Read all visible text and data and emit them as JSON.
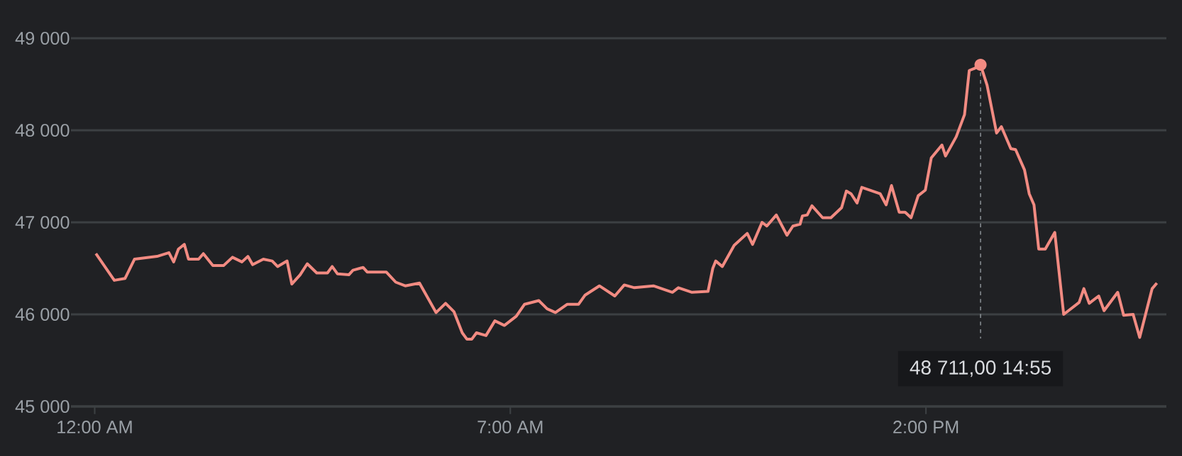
{
  "chart_data": {
    "type": "line",
    "x": [
      0.02,
      0.33,
      0.51,
      0.67,
      1.05,
      1.25,
      1.33,
      1.41,
      1.51,
      1.58,
      1.75,
      1.83,
      1.99,
      2.17,
      2.32,
      2.48,
      2.58,
      2.66,
      2.84,
      2.99,
      3.08,
      3.24,
      3.32,
      3.46,
      3.58,
      3.74,
      3.92,
      4.0,
      4.09,
      4.28,
      4.35,
      4.52,
      4.59,
      4.91,
      5.07,
      5.23,
      5.47,
      5.75,
      5.91,
      6.05,
      6.19,
      6.27,
      6.35,
      6.43,
      6.59,
      6.74,
      6.9,
      7.1,
      7.24,
      7.48,
      7.62,
      7.76,
      7.96,
      8.15,
      8.26,
      8.5,
      8.76,
      8.92,
      9.09,
      9.41,
      9.73,
      9.83,
      10.06,
      10.33,
      10.41,
      10.46,
      10.57,
      10.77,
      10.99,
      11.08,
      11.24,
      11.32,
      11.48,
      11.66,
      11.76,
      11.88,
      11.92,
      12.0,
      12.08,
      12.26,
      12.4,
      12.58,
      12.66,
      12.74,
      12.84,
      12.92,
      13.23,
      13.33,
      13.42,
      13.55,
      13.65,
      13.75,
      13.87,
      13.99,
      14.09,
      14.27,
      14.33,
      14.51,
      14.65,
      14.73,
      14.81,
      14.92,
      15.03,
      15.19,
      15.27,
      15.43,
      15.51,
      15.66,
      15.74,
      15.82,
      15.9,
      16.01,
      16.17,
      16.32,
      16.58,
      16.66,
      16.75,
      16.91,
      17.0,
      17.23,
      17.33,
      17.49,
      17.6,
      17.81,
      17.89
    ],
    "series": [
      {
        "color": "#f28b82",
        "values": [
          46660,
          46370,
          46390,
          46600,
          46630,
          46670,
          46570,
          46710,
          46760,
          46600,
          46600,
          46660,
          46530,
          46530,
          46620,
          46570,
          46630,
          46540,
          46600,
          46580,
          46520,
          46580,
          46330,
          46430,
          46550,
          46450,
          46450,
          46520,
          46440,
          46430,
          46480,
          46510,
          46460,
          46460,
          46350,
          46310,
          46340,
          46020,
          46120,
          46030,
          45800,
          45730,
          45730,
          45800,
          45770,
          45930,
          45880,
          45980,
          46110,
          46150,
          46060,
          46020,
          46110,
          46110,
          46210,
          46310,
          46200,
          46320,
          46290,
          46310,
          46240,
          46290,
          46240,
          46250,
          46500,
          46580,
          46520,
          46750,
          46880,
          46760,
          47000,
          46960,
          47080,
          46860,
          46960,
          46980,
          47070,
          47080,
          47180,
          47050,
          47050,
          47160,
          47340,
          47310,
          47210,
          47380,
          47310,
          47190,
          47400,
          47110,
          47110,
          47050,
          47290,
          47350,
          47700,
          47840,
          47720,
          47930,
          48170,
          48650,
          48670,
          48711,
          48490,
          47970,
          48040,
          47800,
          47790,
          47570,
          47310,
          47190,
          46710,
          46710,
          46890,
          46000,
          46130,
          46280,
          46120,
          46200,
          46040,
          46240,
          45990,
          46000,
          45750,
          46280,
          46340
        ]
      }
    ],
    "xlim": [
      -0.4,
      18.05
    ],
    "ylim": [
      45000,
      49000
    ],
    "xticks": [
      {
        "value": 0,
        "label": "12:00 AM"
      },
      {
        "value": 7,
        "label": "7:00 AM"
      },
      {
        "value": 14,
        "label": "2:00 PM"
      }
    ],
    "yticks": [
      {
        "value": 45000,
        "label": "45 000"
      },
      {
        "value": 46000,
        "label": "46 000"
      },
      {
        "value": 47000,
        "label": "47 000"
      },
      {
        "value": 48000,
        "label": "48 000"
      },
      {
        "value": 49000,
        "label": "49 000"
      }
    ],
    "grid": "y",
    "ref_lines": [
      {
        "axis": "x",
        "value": 14.92,
        "line_style": "dashed",
        "color": "#9aa0a6"
      }
    ],
    "annotations": [
      "48 711,00  14:55"
    ]
  }
}
